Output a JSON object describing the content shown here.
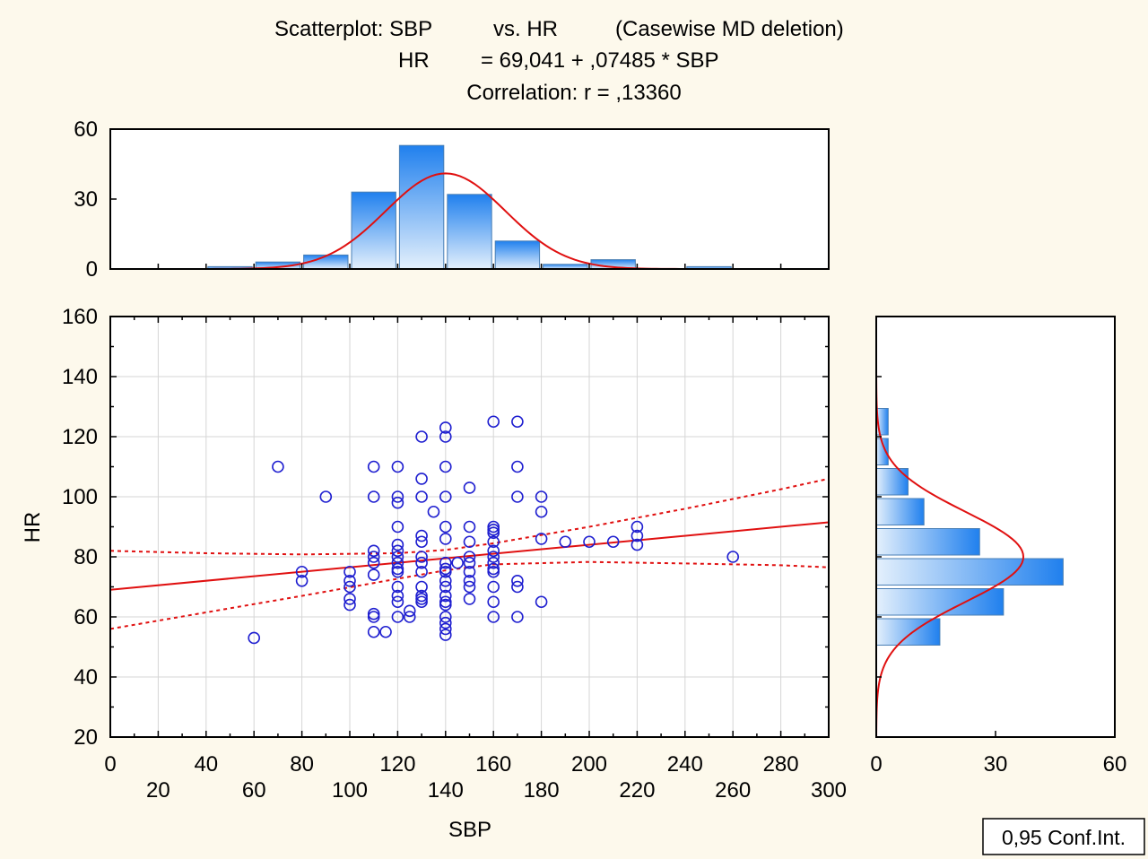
{
  "title_lines": {
    "line1_a": "Scatterplot: SBP",
    "line1_b": "vs. HR",
    "line1_c": "(Casewise MD deletion)",
    "line2_a": "HR",
    "line2_b": "= 69,041 + ,07485 * SBP",
    "line3": "Correlation: r = ,13360"
  },
  "legend": {
    "conf_int": "0,95 Conf.Int."
  },
  "colors": {
    "background": "#fdf9ec",
    "points": "#1f1fd0",
    "fit": "#e01010",
    "bar_dark": "#2080ee",
    "bar_light": "#e4f0fc",
    "bar_stroke": "#4a7fb5"
  },
  "chart_data": {
    "type": "scatter",
    "xlabel": "SBP",
    "ylabel": "HR",
    "xlim": [
      0,
      300
    ],
    "ylim": [
      20,
      160
    ],
    "x_ticks_row1": [
      0,
      40,
      80,
      120,
      160,
      200,
      240,
      280
    ],
    "x_ticks_row2": [
      20,
      60,
      100,
      140,
      180,
      220,
      260,
      300
    ],
    "y_ticks": [
      20,
      40,
      60,
      80,
      100,
      120,
      140,
      160
    ],
    "grid": true,
    "regression": {
      "intercept": 69.041,
      "slope": 0.07485,
      "r": 0.1336,
      "confidence": 0.95
    },
    "conf_band": {
      "x": [
        0,
        40,
        80,
        120,
        140,
        160,
        200,
        240,
        280,
        300
      ],
      "upper": [
        82,
        81.2,
        80.8,
        81.2,
        82.3,
        84.5,
        90,
        96,
        102.5,
        106
      ],
      "lower": [
        56,
        61.5,
        67,
        72.7,
        75.5,
        77.5,
        78.3,
        77.8,
        77.2,
        76.5
      ]
    },
    "points": [
      [
        60,
        53
      ],
      [
        70,
        110
      ],
      [
        80,
        75
      ],
      [
        80,
        72
      ],
      [
        90,
        100
      ],
      [
        100,
        75
      ],
      [
        100,
        72
      ],
      [
        100,
        70
      ],
      [
        100,
        66
      ],
      [
        100,
        64
      ],
      [
        110,
        110
      ],
      [
        110,
        100
      ],
      [
        110,
        82
      ],
      [
        110,
        80
      ],
      [
        110,
        78
      ],
      [
        110,
        74
      ],
      [
        110,
        61
      ],
      [
        110,
        60
      ],
      [
        110,
        55
      ],
      [
        115,
        55
      ],
      [
        120,
        110
      ],
      [
        120,
        100
      ],
      [
        120,
        98
      ],
      [
        120,
        90
      ],
      [
        120,
        84
      ],
      [
        120,
        82
      ],
      [
        120,
        80
      ],
      [
        120,
        78
      ],
      [
        120,
        76
      ],
      [
        120,
        75
      ],
      [
        120,
        70
      ],
      [
        120,
        67
      ],
      [
        120,
        65
      ],
      [
        120,
        60
      ],
      [
        125,
        62
      ],
      [
        125,
        60
      ],
      [
        130,
        120
      ],
      [
        130,
        106
      ],
      [
        130,
        100
      ],
      [
        130,
        87
      ],
      [
        130,
        85
      ],
      [
        130,
        80
      ],
      [
        130,
        78
      ],
      [
        130,
        75
      ],
      [
        130,
        70
      ],
      [
        130,
        67
      ],
      [
        130,
        66
      ],
      [
        130,
        65
      ],
      [
        135,
        95
      ],
      [
        140,
        123
      ],
      [
        140,
        120
      ],
      [
        140,
        110
      ],
      [
        140,
        100
      ],
      [
        140,
        90
      ],
      [
        140,
        86
      ],
      [
        140,
        78
      ],
      [
        140,
        76
      ],
      [
        140,
        75
      ],
      [
        140,
        72
      ],
      [
        140,
        70
      ],
      [
        140,
        67
      ],
      [
        140,
        65
      ],
      [
        140,
        64
      ],
      [
        140,
        60
      ],
      [
        140,
        58
      ],
      [
        140,
        56
      ],
      [
        140,
        54
      ],
      [
        145,
        78
      ],
      [
        150,
        103
      ],
      [
        150,
        90
      ],
      [
        150,
        85
      ],
      [
        150,
        80
      ],
      [
        150,
        78
      ],
      [
        150,
        75
      ],
      [
        150,
        72
      ],
      [
        150,
        70
      ],
      [
        150,
        66
      ],
      [
        160,
        125
      ],
      [
        160,
        90
      ],
      [
        160,
        89
      ],
      [
        160,
        88
      ],
      [
        160,
        85
      ],
      [
        160,
        82
      ],
      [
        160,
        80
      ],
      [
        160,
        78
      ],
      [
        160,
        76
      ],
      [
        160,
        75
      ],
      [
        160,
        70
      ],
      [
        160,
        65
      ],
      [
        160,
        60
      ],
      [
        170,
        125
      ],
      [
        170,
        110
      ],
      [
        170,
        100
      ],
      [
        170,
        72
      ],
      [
        170,
        70
      ],
      [
        170,
        60
      ],
      [
        180,
        100
      ],
      [
        180,
        95
      ],
      [
        180,
        86
      ],
      [
        180,
        65
      ],
      [
        190,
        85
      ],
      [
        200,
        85
      ],
      [
        210,
        85
      ],
      [
        220,
        90
      ],
      [
        220,
        87
      ],
      [
        220,
        84
      ],
      [
        260,
        80
      ]
    ],
    "x_histogram": {
      "ylim": [
        0,
        60
      ],
      "y_ticks": [
        0,
        30,
        60
      ],
      "bins": [
        {
          "from": 40,
          "to": 60,
          "count": 1
        },
        {
          "from": 60,
          "to": 80,
          "count": 3
        },
        {
          "from": 80,
          "to": 100,
          "count": 6
        },
        {
          "from": 100,
          "to": 120,
          "count": 33
        },
        {
          "from": 120,
          "to": 140,
          "count": 53
        },
        {
          "from": 140,
          "to": 160,
          "count": 32
        },
        {
          "from": 160,
          "to": 180,
          "count": 12
        },
        {
          "from": 180,
          "to": 200,
          "count": 2
        },
        {
          "from": 200,
          "to": 220,
          "count": 4
        },
        {
          "from": 240,
          "to": 260,
          "count": 1
        }
      ],
      "normal_fit": {
        "mean": 140,
        "sd": 25,
        "peak": 41
      }
    },
    "y_histogram": {
      "xlim": [
        0,
        60
      ],
      "x_ticks": [
        0,
        30,
        60
      ],
      "bins": [
        {
          "from": 50,
          "to": 60,
          "count": 16
        },
        {
          "from": 60,
          "to": 70,
          "count": 32
        },
        {
          "from": 70,
          "to": 80,
          "count": 47
        },
        {
          "from": 80,
          "to": 90,
          "count": 26
        },
        {
          "from": 90,
          "to": 100,
          "count": 12
        },
        {
          "from": 100,
          "to": 110,
          "count": 8
        },
        {
          "from": 110,
          "to": 120,
          "count": 3
        },
        {
          "from": 120,
          "to": 130,
          "count": 3
        }
      ],
      "normal_fit": {
        "mean": 80,
        "sd": 15,
        "peak": 37
      }
    }
  }
}
